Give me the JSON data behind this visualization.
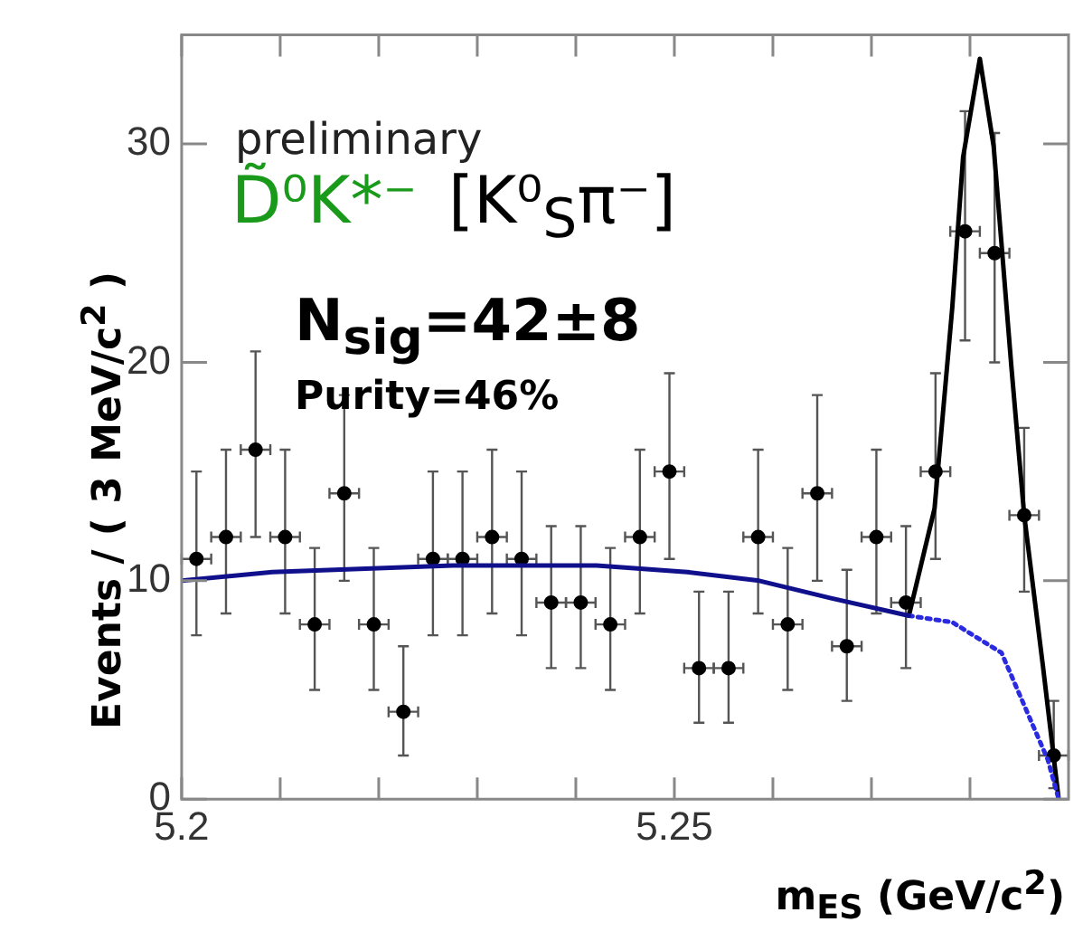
{
  "chart_data": {
    "type": "scatter",
    "xlabel": "m$_{ES}$ (GeV/c$^{2}$)",
    "ylabel": "Events / ( 3 MeV/c$^{2}$ )",
    "x": [
      5.2015,
      5.2045,
      5.2075,
      5.2105,
      5.2135,
      5.2165,
      5.2195,
      5.2225,
      5.2255,
      5.2285,
      5.2315,
      5.2345,
      5.2375,
      5.2405,
      5.2435,
      5.2465,
      5.2495,
      5.2525,
      5.2555,
      5.2585,
      5.2615,
      5.2645,
      5.2675,
      5.2705,
      5.2735,
      5.2765,
      5.2795,
      5.2825,
      5.2855,
      5.2885
    ],
    "xlim": [
      5.2,
      5.29
    ],
    "xticks": [
      5.2,
      {
        "value": 5.21,
        "label": null
      },
      {
        "value": 5.22,
        "label": null
      },
      {
        "value": 5.23,
        "label": null
      },
      {
        "value": 5.24,
        "label": null
      },
      5.25,
      {
        "value": 5.26,
        "label": null
      },
      {
        "value": 5.27,
        "label": null
      },
      {
        "value": 5.28,
        "label": null
      }
    ],
    "ylim": [
      0,
      35
    ],
    "yticks": [
      0,
      10,
      20,
      30
    ],
    "grid": false,
    "legend": false,
    "marker": "circle",
    "series": [
      {
        "type": "scatter",
        "color": "#000000",
        "values": [
          11,
          12,
          16,
          12,
          8,
          14,
          8,
          4,
          11,
          11,
          12,
          11,
          9,
          9,
          8,
          12,
          15,
          6,
          6,
          12,
          8,
          14,
          7,
          12,
          9,
          15,
          26,
          25,
          13,
          2
        ],
        "xerrors": [
          0.0015,
          0.0015,
          0.0015,
          0.0015,
          0.0015,
          0.0015,
          0.0015,
          0.0015,
          0.0015,
          0.0015,
          0.0015,
          0.0015,
          0.0015,
          0.0015,
          0.0015,
          0.0015,
          0.0015,
          0.0015,
          0.0015,
          0.0015,
          0.0015,
          0.0015,
          0.0015,
          0.0015,
          0.0015,
          0.0015,
          0.0015,
          0.0015,
          0.0015,
          0.0015
        ],
        "errors": [
          [
            7.5,
            15
          ],
          [
            8.5,
            16
          ],
          [
            12,
            20.5
          ],
          [
            8.5,
            16
          ],
          [
            5,
            11.5
          ],
          [
            10,
            18.5
          ],
          [
            5,
            11.5
          ],
          [
            2,
            7
          ],
          [
            7.5,
            15
          ],
          [
            7.5,
            15
          ],
          [
            8.5,
            16
          ],
          [
            7.5,
            15
          ],
          [
            6,
            12.5
          ],
          [
            6,
            12.5
          ],
          [
            5,
            11.5
          ],
          [
            8.5,
            16
          ],
          [
            11,
            19.5
          ],
          [
            3.5,
            9.5
          ],
          [
            3.5,
            9.5
          ],
          [
            8.5,
            16
          ],
          [
            5,
            11.5
          ],
          [
            10,
            18.5
          ],
          [
            4.5,
            10.5
          ],
          [
            8.5,
            16
          ],
          [
            6,
            12.5
          ],
          [
            11,
            19.5
          ],
          [
            21,
            31.5
          ],
          [
            20,
            30.5
          ],
          [
            9.5,
            17
          ],
          [
            0.5,
            4.5
          ]
        ]
      },
      {
        "type": "line",
        "color": "#10108c",
        "line_style": "solid",
        "marker": "none",
        "x": [
          5.2,
          5.2092,
          5.2275,
          5.2421,
          5.2513,
          5.2586,
          5.2659,
          5.2738
        ],
        "values": [
          10,
          10.4,
          10.7,
          10.7,
          10.4,
          10,
          9.2,
          8.4
        ]
      },
      {
        "type": "line",
        "color": "#2a2ae0",
        "line_style": "dotted",
        "marker": "none",
        "x": [
          5.2738,
          5.2782,
          5.2832,
          5.2855,
          5.2879,
          5.289
        ],
        "values": [
          8.4,
          8.1,
          6.7,
          4.3,
          1.8,
          0
        ]
      },
      {
        "type": "line",
        "color": "#000000",
        "line_style": "solid",
        "marker": "none",
        "x": [
          5.2738,
          5.2764,
          5.2782,
          5.2793,
          5.281,
          5.2824,
          5.2842,
          5.2855,
          5.2874,
          5.289
        ],
        "values": [
          8.4,
          13.3,
          22.5,
          29.4,
          33.9,
          29.9,
          19.8,
          13,
          6.1,
          0
        ]
      }
    ],
    "annotations": [
      "preliminary",
      "D̃⁰K*⁻",
      "[K⁰$_{S}$π⁻]",
      "N$_{sig}$=42±8",
      "Purity=46%"
    ]
  }
}
